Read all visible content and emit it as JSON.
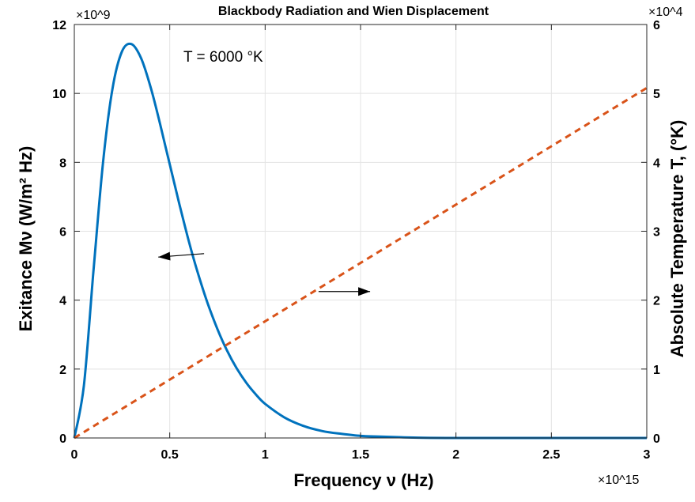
{
  "chart_data": {
    "type": "line",
    "title": "Blackbody Radiation and Wien Displacement",
    "xlabel": "Frequency ν (Hz)",
    "ylabel_left": "Exitance Mν (W/m² Hz)",
    "ylabel_right": "Absolute Temperature T, (°K)",
    "x_exponent": "×10^15",
    "y_left_exponent": "×10^9",
    "y_right_exponent": "×10^4",
    "xlim": [
      0,
      3
    ],
    "ylim_left": [
      0,
      12
    ],
    "ylim_right": [
      0,
      6
    ],
    "x_ticks": [
      "0",
      "0.5",
      "1",
      "1.5",
      "2",
      "2.5",
      "3"
    ],
    "y_left_ticks": [
      "0",
      "2",
      "4",
      "6",
      "8",
      "10",
      "12"
    ],
    "y_right_ticks": [
      "0",
      "1",
      "2",
      "3",
      "4",
      "5",
      "6"
    ],
    "grid": true,
    "annotation": "T = 6000 °K",
    "series": [
      {
        "color": "#0072BD",
        "style": "solid",
        "axis": "left",
        "x": [
          0,
          0.05,
          0.1,
          0.15,
          0.2,
          0.25,
          0.3,
          0.35,
          0.4,
          0.45,
          0.5,
          0.55,
          0.6,
          0.65,
          0.7,
          0.75,
          0.8,
          0.85,
          0.9,
          0.95,
          1.0,
          1.1,
          1.2,
          1.3,
          1.4,
          1.5,
          1.6,
          1.8,
          2.0,
          2.2,
          2.5,
          3.0
        ],
        "y": [
          0,
          1.52,
          4.82,
          7.97,
          10.14,
          11.22,
          11.43,
          11.02,
          10.18,
          9.1,
          7.94,
          6.8,
          5.71,
          4.74,
          3.89,
          3.16,
          2.54,
          2.03,
          1.61,
          1.27,
          0.99,
          0.6,
          0.35,
          0.2,
          0.12,
          0.06,
          0.04,
          0.01,
          0.0,
          0.0,
          0.0,
          0.0
        ]
      },
      {
        "color": "#D95319",
        "style": "dashed",
        "axis": "right",
        "x": [
          0,
          3.0
        ],
        "y": [
          0,
          5.08
        ]
      }
    ],
    "arrows": [
      {
        "from": [
          0.68,
          5.35
        ],
        "to": [
          0.44,
          5.25
        ],
        "axis": "left"
      },
      {
        "from": [
          1.28,
          4.25
        ],
        "to": [
          1.55,
          4.25
        ],
        "axis": "left"
      }
    ]
  }
}
